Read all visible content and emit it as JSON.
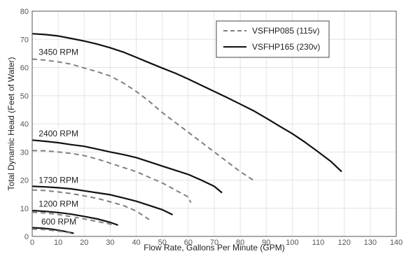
{
  "chart_data": {
    "type": "line",
    "xlabel": "Flow Rate, Gallons Per Minute (GPM)",
    "ylabel": "Total Dynamic Head (Feet of Water)",
    "xlim": [
      0,
      140
    ],
    "ylim": [
      0,
      80
    ],
    "xticks": [
      0,
      10,
      20,
      30,
      40,
      50,
      60,
      70,
      80,
      90,
      100,
      110,
      120,
      130,
      140
    ],
    "yticks": [
      0,
      10,
      20,
      30,
      40,
      50,
      60,
      70,
      80
    ],
    "grid": true,
    "legend_position": "top-right",
    "legend": [
      {
        "label": "VSFHP085 (115v)",
        "style": "dashed",
        "color": "#808080"
      },
      {
        "label": "VSFHP165 (230v)",
        "style": "solid",
        "color": "#111111"
      }
    ],
    "curve_labels": [
      {
        "text": "3450 RPM",
        "x": 2.5,
        "y": 64.5
      },
      {
        "text": "2400 RPM",
        "x": 2.5,
        "y": 35.5
      },
      {
        "text": "1730 RPM",
        "x": 2.5,
        "y": 19.0
      },
      {
        "text": "1200 RPM",
        "x": 2.5,
        "y": 10.5
      },
      {
        "text": "600 RPM",
        "x": 3.5,
        "y": 4.2
      }
    ],
    "series": [
      {
        "name": "VSFHP165 (230v)",
        "rpm": "3450 RPM",
        "style": "solid",
        "points": [
          [
            0,
            72
          ],
          [
            5,
            71.7
          ],
          [
            10,
            71.2
          ],
          [
            15,
            70.3
          ],
          [
            20,
            69.4
          ],
          [
            25,
            68.3
          ],
          [
            30,
            67
          ],
          [
            35,
            65.5
          ],
          [
            40,
            63.6
          ],
          [
            45,
            61.7
          ],
          [
            50,
            59.8
          ],
          [
            55,
            58
          ],
          [
            60,
            55.9
          ],
          [
            65,
            53.7
          ],
          [
            70,
            51.5
          ],
          [
            75,
            49.3
          ],
          [
            80,
            47
          ],
          [
            85,
            44.7
          ],
          [
            90,
            42
          ],
          [
            95,
            39.2
          ],
          [
            100,
            36.5
          ],
          [
            105,
            33.4
          ],
          [
            110,
            30
          ],
          [
            115,
            26.5
          ],
          [
            119,
            23
          ]
        ]
      },
      {
        "name": "VSFHP085 (115v)",
        "rpm": "3450 RPM",
        "style": "dashed",
        "points": [
          [
            0,
            63
          ],
          [
            5,
            62.6
          ],
          [
            10,
            62
          ],
          [
            15,
            61.2
          ],
          [
            20,
            59.8
          ],
          [
            25,
            58.5
          ],
          [
            30,
            57
          ],
          [
            35,
            54.5
          ],
          [
            40,
            51.5
          ],
          [
            45,
            48
          ],
          [
            50,
            44
          ],
          [
            55,
            40.5
          ],
          [
            60,
            37
          ],
          [
            65,
            33.5
          ],
          [
            70,
            30
          ],
          [
            75,
            26.5
          ],
          [
            80,
            23
          ],
          [
            85,
            20
          ]
        ]
      },
      {
        "name": "VSFHP165 (230v)",
        "rpm": "2400 RPM",
        "style": "solid",
        "points": [
          [
            0,
            34.2
          ],
          [
            5,
            33.8
          ],
          [
            10,
            33.3
          ],
          [
            15,
            32.6
          ],
          [
            20,
            32
          ],
          [
            25,
            31
          ],
          [
            30,
            30
          ],
          [
            35,
            29.1
          ],
          [
            40,
            28
          ],
          [
            45,
            26.5
          ],
          [
            50,
            25
          ],
          [
            55,
            23.5
          ],
          [
            60,
            22
          ],
          [
            65,
            20
          ],
          [
            70,
            17.8
          ],
          [
            73,
            15.5
          ]
        ]
      },
      {
        "name": "VSFHP085 (115v)",
        "rpm": "2400 RPM",
        "style": "dashed",
        "points": [
          [
            0,
            30.5
          ],
          [
            5,
            30.4
          ],
          [
            10,
            30
          ],
          [
            15,
            29.5
          ],
          [
            20,
            28.7
          ],
          [
            25,
            27.5
          ],
          [
            30,
            26
          ],
          [
            35,
            24.5
          ],
          [
            40,
            23
          ],
          [
            45,
            21
          ],
          [
            50,
            19
          ],
          [
            55,
            16.5
          ],
          [
            60,
            14
          ],
          [
            61,
            12
          ]
        ]
      },
      {
        "name": "VSFHP165 (230v)",
        "rpm": "1730 RPM",
        "style": "solid",
        "points": [
          [
            0,
            17.8
          ],
          [
            5,
            17.6
          ],
          [
            10,
            17.3
          ],
          [
            15,
            16.9
          ],
          [
            20,
            16.2
          ],
          [
            25,
            15.5
          ],
          [
            30,
            14.8
          ],
          [
            35,
            13.7
          ],
          [
            40,
            12.5
          ],
          [
            45,
            11
          ],
          [
            50,
            9.5
          ],
          [
            54,
            7.7
          ]
        ]
      },
      {
        "name": "VSFHP085 (115v)",
        "rpm": "1730 RPM",
        "style": "dashed",
        "points": [
          [
            0,
            16.5
          ],
          [
            5,
            16.3
          ],
          [
            10,
            15.8
          ],
          [
            15,
            15.2
          ],
          [
            20,
            14.4
          ],
          [
            25,
            13.5
          ],
          [
            30,
            12.3
          ],
          [
            35,
            11
          ],
          [
            40,
            9
          ],
          [
            45,
            6
          ]
        ]
      },
      {
        "name": "VSFHP165 (230v)",
        "rpm": "1200 RPM",
        "style": "solid",
        "points": [
          [
            0,
            9.2
          ],
          [
            5,
            8.9
          ],
          [
            10,
            8.5
          ],
          [
            15,
            7.9
          ],
          [
            20,
            7.1
          ],
          [
            25,
            6.2
          ],
          [
            30,
            5
          ],
          [
            33,
            4
          ]
        ]
      },
      {
        "name": "VSFHP085 (115v)",
        "rpm": "1200 RPM",
        "style": "dashed",
        "points": [
          [
            0,
            8.6
          ],
          [
            5,
            8.3
          ],
          [
            10,
            7.8
          ],
          [
            15,
            7
          ],
          [
            20,
            6.2
          ],
          [
            25,
            5.3
          ],
          [
            30,
            4.4
          ],
          [
            31,
            3.8
          ]
        ]
      },
      {
        "name": "VSFHP165 (230v)",
        "rpm": "600 RPM",
        "style": "solid",
        "points": [
          [
            0,
            3.1
          ],
          [
            4,
            2.9
          ],
          [
            8,
            2.5
          ],
          [
            12,
            1.9
          ],
          [
            16,
            1.1
          ]
        ]
      },
      {
        "name": "VSFHP085 (115v)",
        "rpm": "600 RPM",
        "style": "dashed",
        "points": [
          [
            0,
            2.6
          ],
          [
            5,
            2.4
          ],
          [
            10,
            1.9
          ],
          [
            15,
            1.2
          ]
        ]
      }
    ]
  }
}
